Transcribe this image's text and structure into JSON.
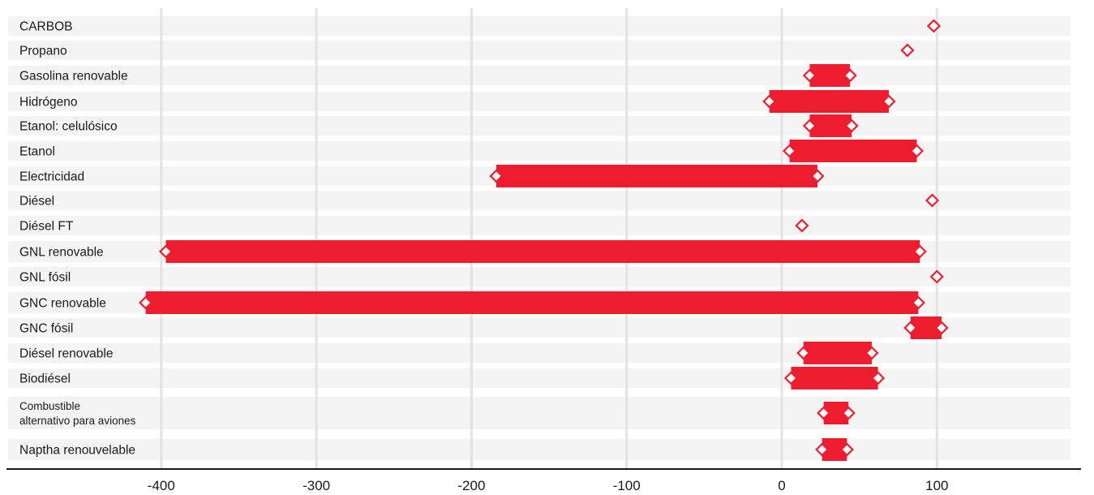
{
  "chart_data": {
    "type": "bar",
    "orientation": "horizontal-range",
    "title": "",
    "xlabel": "",
    "ylabel": "",
    "xlim": [
      -480,
      200
    ],
    "x_ticks": [
      -400,
      -300,
      -200,
      -100,
      0,
      100
    ],
    "x_tick_labels": [
      "-400",
      "-300",
      "-200",
      "-100",
      "0",
      "100"
    ],
    "grid": "vertical",
    "colors": {
      "bar": "#ed1c2e",
      "marker_stroke": "#ed1c2e",
      "marker_fill": "#ffffff",
      "grid": "#e3e3e3",
      "row_band": "#f4f4f4",
      "axis": "#1a1a1a"
    },
    "categories": [
      {
        "label": "CARBOB",
        "min": 98,
        "max": 98
      },
      {
        "label": "Propano",
        "min": 81,
        "max": 81
      },
      {
        "label": "Gasolina renovable",
        "min": 18,
        "max": 44
      },
      {
        "label": "Hidrógeno",
        "min": -8,
        "max": 69
      },
      {
        "label": "Etanol: celulósico",
        "min": 18,
        "max": 45
      },
      {
        "label": "Etanol",
        "min": 5,
        "max": 87
      },
      {
        "label": "Electricidad",
        "min": -184,
        "max": 23
      },
      {
        "label": "Diésel",
        "min": 97,
        "max": 97
      },
      {
        "label": "Diésel FT",
        "min": 13,
        "max": 13
      },
      {
        "label": "GNL renovable",
        "min": -397,
        "max": 89
      },
      {
        "label": "GNL fósil",
        "min": 100,
        "max": 100
      },
      {
        "label": "GNC renovable",
        "min": -410,
        "max": 88
      },
      {
        "label": "GNC fósil",
        "min": 83,
        "max": 103
      },
      {
        "label": "Diésel renovable",
        "min": 14,
        "max": 58
      },
      {
        "label": "Biodiésel",
        "min": 6,
        "max": 62
      },
      {
        "label": [
          "Combustible",
          "alternativo para aviones"
        ],
        "min": 27,
        "max": 43
      },
      {
        "label": "Naptha renouvelable",
        "min": 26,
        "max": 42
      }
    ]
  }
}
